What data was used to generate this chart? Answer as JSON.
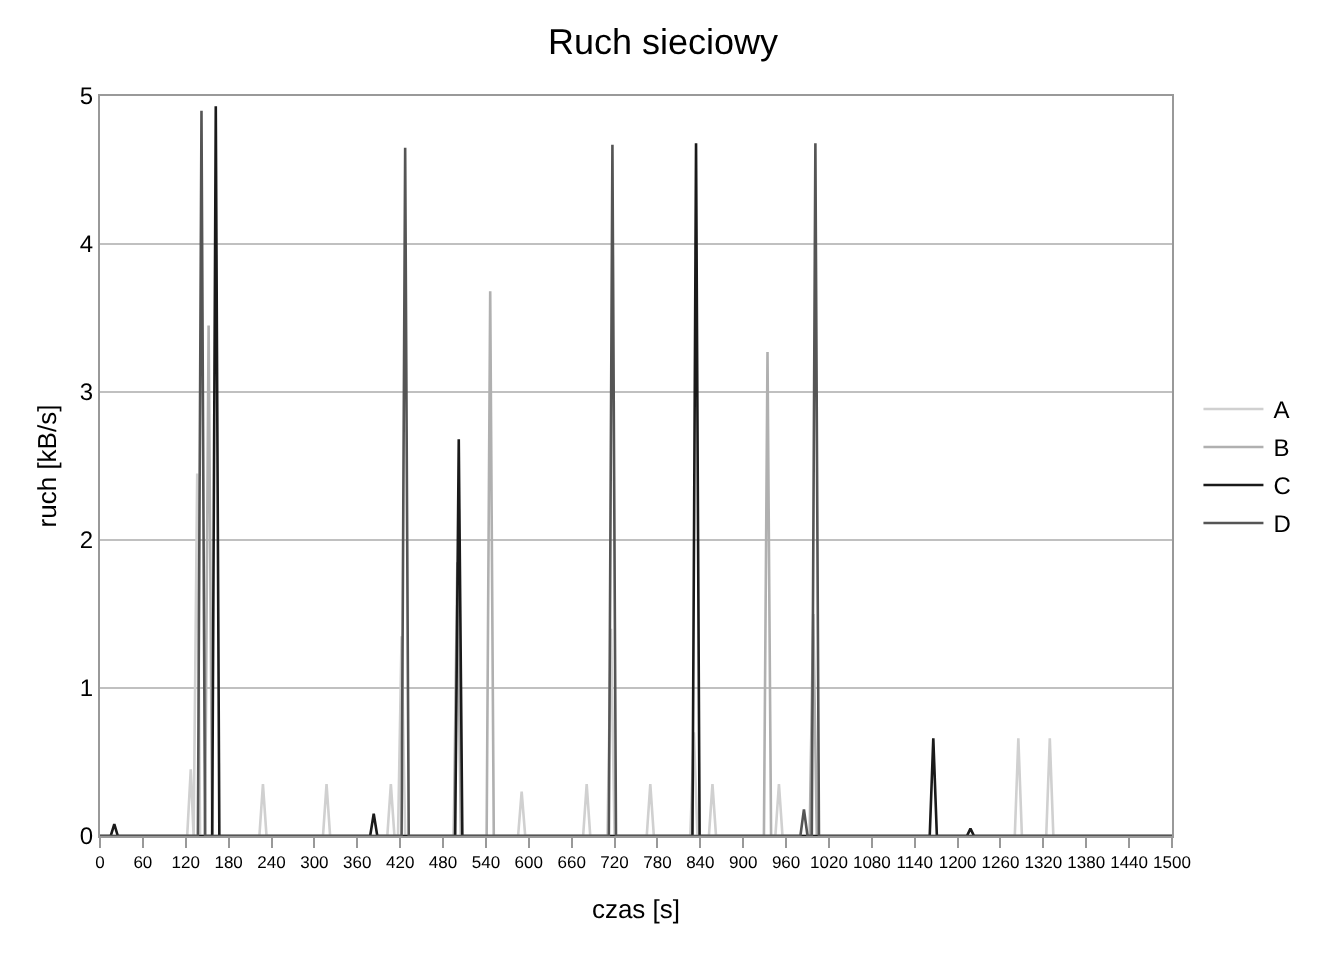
{
  "chart_data": {
    "type": "line",
    "title": "Ruch sieciowy",
    "xlabel": "czas [s]",
    "ylabel": "ruch [kB/s]",
    "xlim": [
      0,
      1500
    ],
    "xticks": [
      0,
      60,
      120,
      180,
      240,
      300,
      360,
      420,
      480,
      540,
      600,
      660,
      720,
      780,
      840,
      900,
      960,
      1020,
      1080,
      1140,
      1200,
      1260,
      1320,
      1380,
      1440,
      1500
    ],
    "ylim": [
      0,
      5
    ],
    "yticks": [
      0,
      1,
      2,
      3,
      4,
      5
    ],
    "grid": "y",
    "legend": "right",
    "marker": "none",
    "line_style": "solid",
    "series": [
      {
        "name": "A",
        "color": "#d0d0d0",
        "x": [
          0,
          122,
          127,
          131,
          136,
          140,
          223,
          228,
          233,
          312,
          317,
          322,
          402,
          407,
          412,
          417,
          422,
          427,
          585,
          590,
          595,
          676,
          681,
          686,
          710,
          715,
          720,
          765,
          770,
          775,
          826,
          831,
          836,
          852,
          857,
          862,
          945,
          950,
          955,
          1280,
          1285,
          1290,
          1324,
          1329,
          1334,
          1500
        ],
        "values": [
          0,
          0,
          0.45,
          0,
          2.45,
          0,
          0,
          0.35,
          0,
          0,
          0.35,
          0,
          0,
          0.35,
          0,
          0,
          1.35,
          0,
          0,
          0.3,
          0,
          0,
          0.35,
          0,
          0,
          1.4,
          0,
          0,
          0.35,
          0,
          0,
          0.7,
          0,
          0,
          0.35,
          0,
          0,
          0.35,
          0,
          0,
          0.66,
          0,
          0,
          0.66,
          0,
          0
        ]
      },
      {
        "name": "B",
        "color": "#b0b0b0",
        "x": [
          0,
          147,
          152,
          157,
          495,
          500,
          505,
          541,
          546,
          551,
          929,
          934,
          939,
          993,
          998,
          1003,
          1500
        ],
        "values": [
          0,
          0,
          3.45,
          0,
          0,
          1.85,
          0,
          0,
          3.68,
          0,
          0,
          3.27,
          0,
          0,
          1.5,
          0,
          0
        ]
      },
      {
        "name": "C",
        "color": "#1a1a1a",
        "x": [
          0,
          15,
          20,
          25,
          157,
          162,
          167,
          378,
          383,
          388,
          497,
          502,
          507,
          829,
          834,
          839,
          1161,
          1166,
          1171,
          1213,
          1218,
          1223,
          1500
        ],
        "values": [
          0,
          0,
          0.08,
          0,
          0,
          4.93,
          0,
          0,
          0.15,
          0,
          0,
          2.68,
          0,
          0,
          4.68,
          0,
          0,
          0.66,
          0,
          0,
          0.05,
          0,
          0
        ]
      },
      {
        "name": "D",
        "color": "#555555",
        "x": [
          0,
          137,
          142,
          147,
          422,
          427,
          432,
          712,
          717,
          722,
          980,
          985,
          990,
          996,
          1001,
          1006,
          1500
        ],
        "values": [
          0,
          0,
          4.9,
          0,
          0,
          4.65,
          0,
          0,
          4.67,
          0,
          0,
          0.18,
          0,
          0,
          4.68,
          0,
          0
        ]
      }
    ]
  }
}
